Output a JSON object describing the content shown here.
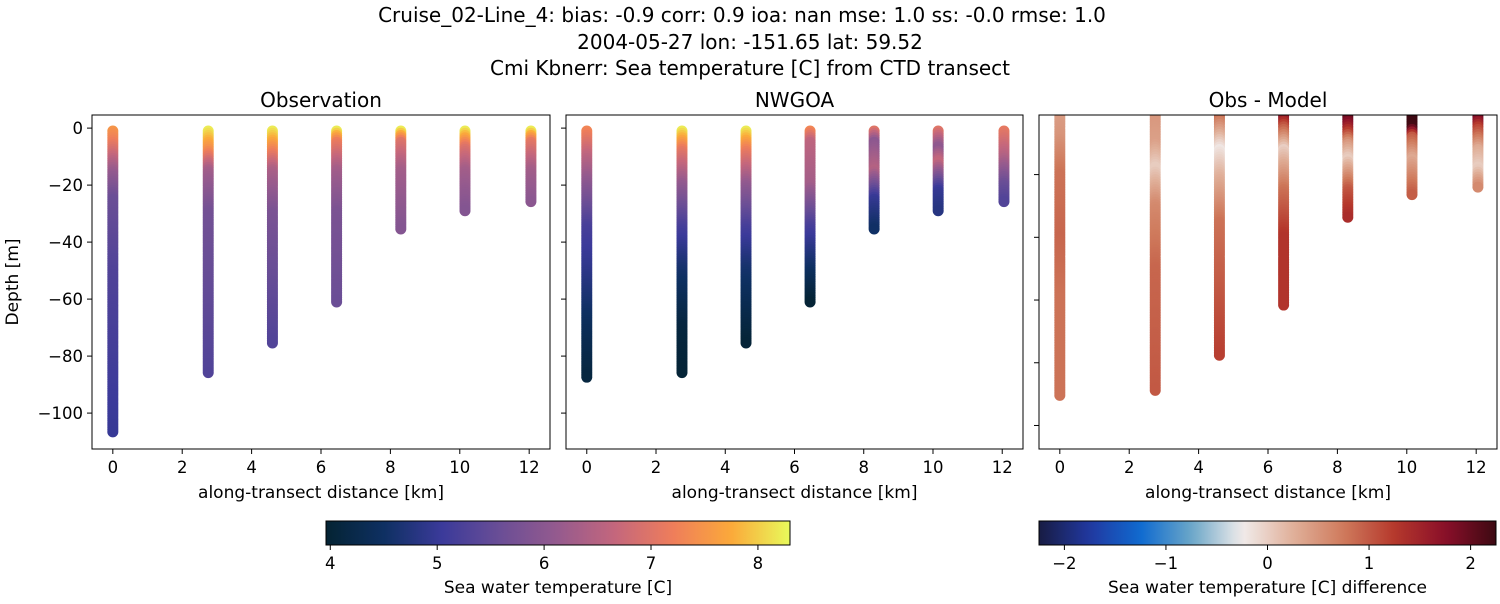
{
  "suptitle": [
    "Cruise_02-Line_4: bias: -0.9  corr: 0.9  ioa: nan  mse: 1.0  ss: -0.0  rmse: 1.0",
    "2004-05-27 lon: -151.65 lat: 59.52",
    "Cmi Kbnerr: Sea temperature [C] from CTD transect"
  ],
  "chart_data": [
    {
      "type": "scatter",
      "title": "Observation",
      "xlabel": "along-transect distance [km]",
      "ylabel": "Depth [m]",
      "xlim": [
        -0.6,
        12.6
      ],
      "ylim": [
        -112.6,
        4.6
      ],
      "xticks": [
        0,
        2,
        4,
        6,
        8,
        10,
        12
      ],
      "yticks": [
        0,
        -20,
        -40,
        -60,
        -80,
        -100
      ],
      "show_ytick_labels": true,
      "colormap": "thermal",
      "clim": [
        3.96,
        8.3
      ],
      "profiles": [
        {
          "x": 0,
          "depth": [
            -1,
            -5,
            -15,
            -25,
            -50,
            -107
          ],
          "value": [
            7.5,
            7.2,
            6.2,
            5.6,
            5.3,
            5.0
          ]
        },
        {
          "x": 2.75,
          "depth": [
            -1,
            -8,
            -15,
            -30,
            -86
          ],
          "value": [
            8.2,
            7.4,
            6.3,
            5.7,
            5.3
          ]
        },
        {
          "x": 4.6,
          "depth": [
            -1,
            -8,
            -15,
            -30,
            -76
          ],
          "value": [
            8.2,
            7.3,
            6.4,
            5.8,
            5.3
          ]
        },
        {
          "x": 6.45,
          "depth": [
            -1,
            -5,
            -15,
            -30,
            -61
          ],
          "value": [
            8.2,
            7.2,
            6.3,
            5.8,
            5.6
          ]
        },
        {
          "x": 8.3,
          "depth": [
            -1,
            -5,
            -15,
            -36
          ],
          "value": [
            8.2,
            7.0,
            6.3,
            5.9
          ]
        },
        {
          "x": 10.15,
          "depth": [
            -1,
            -7,
            -15,
            -29
          ],
          "value": [
            8.2,
            7.0,
            6.3,
            5.9
          ]
        },
        {
          "x": 12.05,
          "depth": [
            -1,
            -5,
            -15,
            -26
          ],
          "value": [
            8.2,
            7.1,
            6.3,
            6.0
          ]
        }
      ]
    },
    {
      "type": "scatter",
      "title": "NWGOA",
      "xlabel": "along-transect distance [km]",
      "xlim": [
        -0.6,
        12.6
      ],
      "ylim": [
        -112.6,
        4.6
      ],
      "xticks": [
        0,
        2,
        4,
        6,
        8,
        10,
        12
      ],
      "yticks": [
        0,
        -20,
        -40,
        -60,
        -80,
        -100
      ],
      "show_ytick_labels": false,
      "colormap": "thermal",
      "clim": [
        3.96,
        8.3
      ],
      "profiles": [
        {
          "x": 0,
          "depth": [
            -1,
            -10,
            -20,
            -35,
            -50,
            -70,
            -88
          ],
          "value": [
            7.3,
            6.6,
            6.0,
            5.2,
            4.9,
            4.4,
            4.1
          ]
        },
        {
          "x": 2.75,
          "depth": [
            -1,
            -8,
            -20,
            -35,
            -50,
            -70,
            -86
          ],
          "value": [
            8.2,
            7.1,
            6.1,
            5.2,
            4.6,
            4.1,
            4.0
          ]
        },
        {
          "x": 4.6,
          "depth": [
            -1,
            -8,
            -20,
            -35,
            -50,
            -76
          ],
          "value": [
            8.2,
            7.2,
            6.1,
            5.2,
            4.6,
            4.0
          ]
        },
        {
          "x": 6.45,
          "depth": [
            -1,
            -5,
            -20,
            -35,
            -50,
            -61
          ],
          "value": [
            7.3,
            6.6,
            6.3,
            5.2,
            4.5,
            4.0
          ]
        },
        {
          "x": 8.3,
          "depth": [
            -1,
            -5,
            -15,
            -25,
            -36
          ],
          "value": [
            7.0,
            6.0,
            6.5,
            5.0,
            4.5
          ]
        },
        {
          "x": 10.15,
          "depth": [
            -1,
            -7,
            -12,
            -22,
            -29
          ],
          "value": [
            7.0,
            6.0,
            6.7,
            5.0,
            4.8
          ]
        },
        {
          "x": 12.05,
          "depth": [
            -1,
            -10,
            -20,
            -26
          ],
          "value": [
            7.1,
            6.5,
            5.6,
            5.3
          ]
        }
      ]
    },
    {
      "type": "scatter",
      "title": "Obs - Model",
      "xlabel": "along-transect distance [km]",
      "xlim": [
        -0.6,
        12.6
      ],
      "ylim": [
        -107.5,
        -1
      ],
      "xticks": [
        0,
        2,
        4,
        6,
        8,
        10,
        12
      ],
      "yticks": [
        -20,
        -40,
        -60,
        -80,
        -100
      ],
      "show_ytick_labels": false,
      "colormap": "balance",
      "clim": [
        -2.25,
        2.25
      ],
      "profiles": [
        {
          "x": 0,
          "depth": [
            0,
            -8,
            -20,
            -40,
            -60,
            -91
          ],
          "value": [
            0.4,
            0.5,
            0.8,
            0.9,
            0.8,
            0.8
          ]
        },
        {
          "x": 2.75,
          "depth": [
            0,
            -10,
            -18,
            -30,
            -50,
            -89
          ],
          "value": [
            0.5,
            0.4,
            0.0,
            0.6,
            0.9,
            1.0
          ]
        },
        {
          "x": 4.6,
          "depth": [
            0,
            -5,
            -12,
            -20,
            -35,
            -78
          ],
          "value": [
            1.0,
            0.5,
            -0.2,
            0.2,
            0.8,
            1.2
          ]
        },
        {
          "x": 6.45,
          "depth": [
            0,
            -5,
            -12,
            -25,
            -40,
            -62
          ],
          "value": [
            2.0,
            1.0,
            0.0,
            0.8,
            1.3,
            1.3
          ]
        },
        {
          "x": 8.3,
          "depth": [
            0,
            -5,
            -10,
            -15,
            -25,
            -34
          ],
          "value": [
            2.3,
            1.5,
            0.5,
            0.0,
            1.0,
            1.4
          ]
        },
        {
          "x": 10.15,
          "depth": [
            0,
            -5,
            -8,
            -15,
            -27
          ],
          "value": [
            2.3,
            2.2,
            1.0,
            0.3,
            1.0
          ]
        },
        {
          "x": 12.05,
          "depth": [
            0,
            -5,
            -12,
            -18,
            -24
          ],
          "value": [
            2.3,
            1.2,
            0.3,
            0.0,
            0.6
          ]
        }
      ]
    }
  ],
  "colorbars": [
    {
      "label": "Sea water temperature [C]",
      "colormap": "thermal",
      "range": [
        3.96,
        8.3
      ],
      "ticks": [
        4,
        5,
        6,
        7,
        8
      ],
      "tick_labels": [
        "4",
        "5",
        "6",
        "7",
        "8"
      ]
    },
    {
      "label": "Sea water temperature [C] difference",
      "colormap": "balance",
      "range": [
        -2.25,
        2.25
      ],
      "ticks": [
        -2,
        -1,
        0,
        1,
        2
      ],
      "tick_labels": [
        "−2",
        "−1",
        "0",
        "1",
        "2"
      ]
    }
  ],
  "colormaps": {
    "thermal": [
      "#042333",
      "#0e3062",
      "#3b3a9a",
      "#6a4e96",
      "#955a8e",
      "#c5677c",
      "#ef7e5a",
      "#fbaa3a",
      "#e8fa5b"
    ],
    "balance": [
      "#181c43",
      "#2138a0",
      "#0f6ad0",
      "#6aa6c8",
      "#f1eceb",
      "#e0b09a",
      "#cf7a5c",
      "#b5382c",
      "#8a0f29",
      "#3c0912"
    ]
  }
}
